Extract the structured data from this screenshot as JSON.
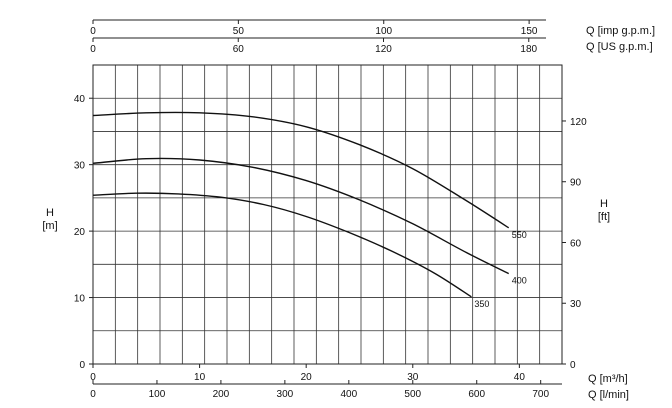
{
  "chart_data": {
    "type": "line",
    "title": "",
    "grid": true,
    "x_axes": {
      "bottom_primary": {
        "label": "Q [m³/h]",
        "ticks": [
          0,
          10,
          20,
          30,
          40
        ],
        "range": [
          0,
          44
        ]
      },
      "bottom_secondary": {
        "label": "Q [l/min]",
        "ticks": [
          0,
          100,
          200,
          300,
          400,
          500,
          600,
          700
        ]
      },
      "top_imp": {
        "label": "Q [imp g.p.m.]",
        "ticks": [
          0,
          50,
          100,
          150
        ]
      },
      "top_us": {
        "label": "Q [US g.p.m.]",
        "ticks": [
          0,
          60,
          120,
          180
        ]
      }
    },
    "y_axes": {
      "left": {
        "label_line1": "H",
        "label_line2": "[m]",
        "ticks": [
          0,
          10,
          20,
          30,
          40
        ],
        "range": [
          0,
          45
        ]
      },
      "right": {
        "label_line1": "H",
        "label_line2": "[ft]",
        "ticks": [
          0,
          30,
          60,
          90,
          120
        ]
      }
    },
    "series": [
      {
        "name": "550",
        "x": [
          0,
          5,
          10,
          15,
          20,
          25,
          30,
          35,
          39
        ],
        "y": [
          37.4,
          37.8,
          37.8,
          37.2,
          35.7,
          33.0,
          29.4,
          24.6,
          20.5
        ]
      },
      {
        "name": "400",
        "x": [
          0,
          5,
          10,
          15,
          20,
          25,
          30,
          35,
          39
        ],
        "y": [
          30.2,
          30.9,
          30.7,
          29.6,
          27.6,
          24.7,
          21.1,
          16.8,
          13.6
        ]
      },
      {
        "name": "350",
        "x": [
          0,
          4,
          8,
          12,
          16,
          20,
          24,
          28,
          32,
          35.5
        ],
        "y": [
          25.4,
          25.7,
          25.6,
          25.1,
          24.0,
          22.2,
          19.8,
          17.0,
          13.7,
          10.1
        ]
      }
    ]
  }
}
